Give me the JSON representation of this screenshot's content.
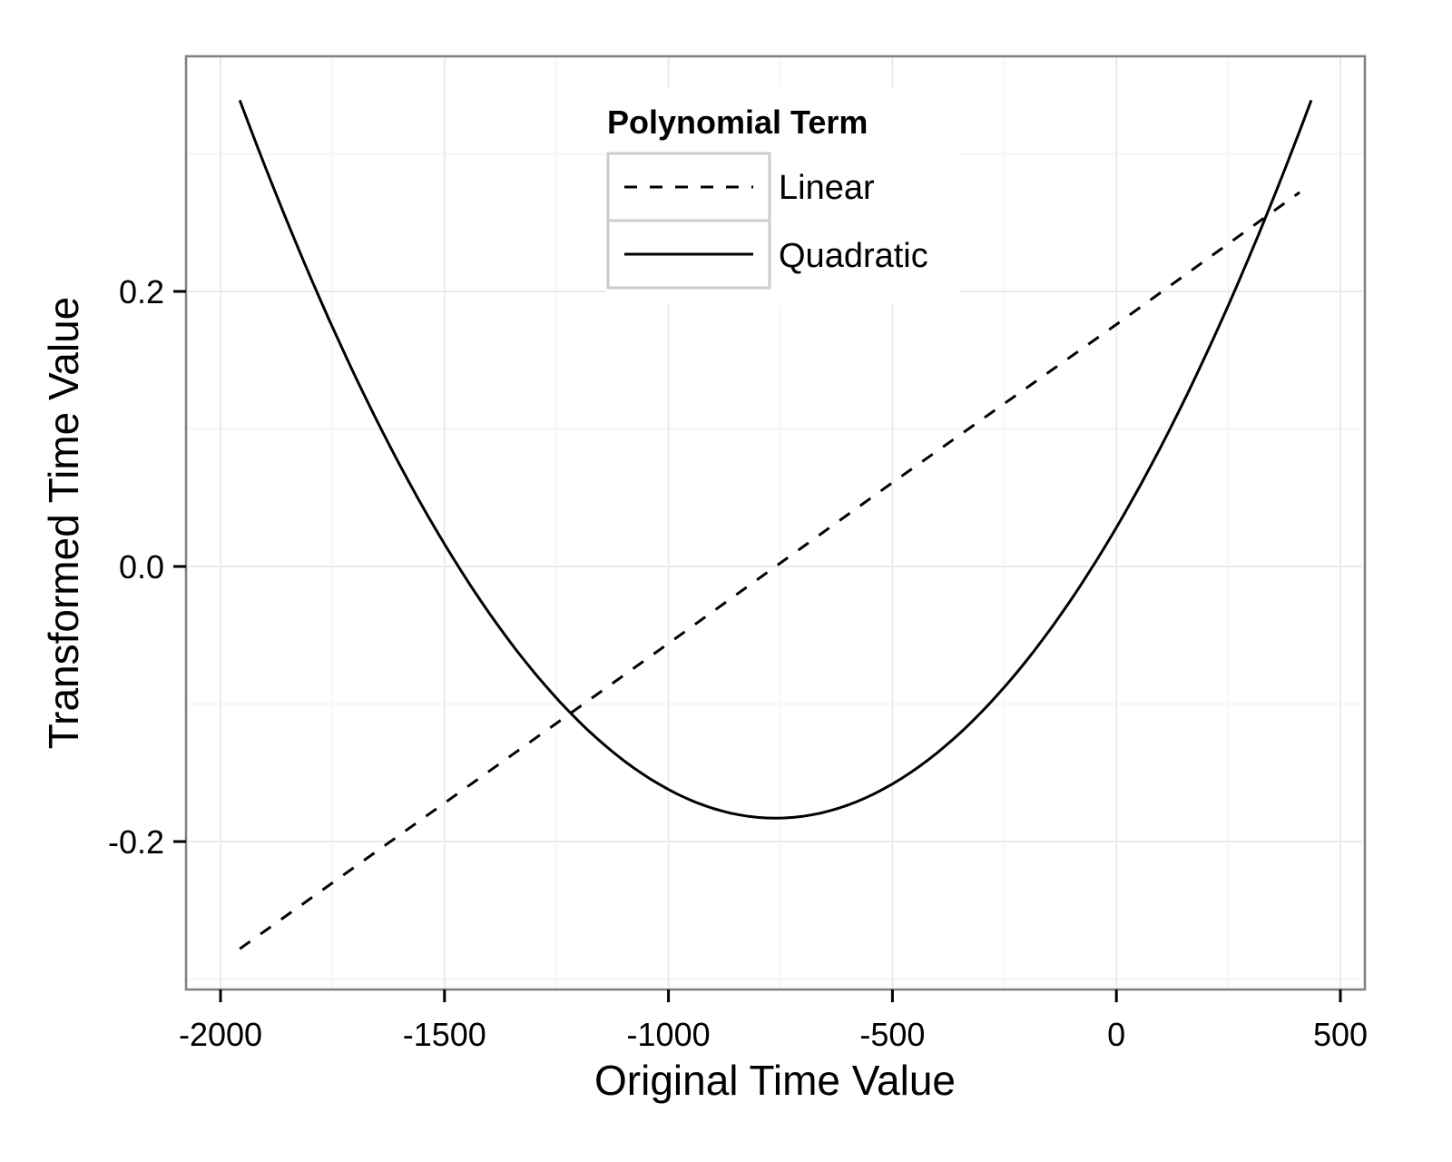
{
  "chart_data": {
    "type": "line",
    "title": "",
    "xlabel": "Original Time Value",
    "ylabel": "Transformed Time Value",
    "xlim": [
      -2077,
      557
    ],
    "ylim": [
      -0.307,
      0.371
    ],
    "x_ticks": [
      -2000,
      -1500,
      -1000,
      -500,
      0,
      500
    ],
    "x_tick_labels": [
      "-2000",
      "-1500",
      "-1000",
      "-500",
      "0",
      "500"
    ],
    "y_ticks": [
      -0.2,
      0.0,
      0.2
    ],
    "y_tick_labels": [
      "-0.2",
      "0.0",
      "0.2"
    ],
    "grid": true,
    "legend": {
      "title": "Polynomial Term",
      "position": "top-center-inside",
      "entries": [
        {
          "label": "Linear",
          "linestyle": "dashed"
        },
        {
          "label": "Quadratic",
          "linestyle": "solid"
        }
      ]
    },
    "series": [
      {
        "name": "Linear",
        "linestyle": "dashed",
        "x": [
          -1957,
          -1500,
          -1000,
          -761,
          -500,
          0,
          409
        ],
        "y": [
          -0.278,
          -0.172,
          -0.056,
          0.0,
          0.061,
          0.176,
          0.272
        ]
      },
      {
        "name": "Quadratic",
        "linestyle": "solid",
        "x": [
          -1957,
          -1800,
          -1600,
          -1500,
          -1400,
          -1200,
          -1000,
          -900,
          -761,
          -600,
          -500,
          -400,
          -200,
          0,
          200,
          300,
          435
        ],
        "y": [
          0.339,
          0.211,
          0.074,
          0.016,
          -0.034,
          -0.113,
          -0.162,
          -0.176,
          -0.183,
          -0.174,
          -0.159,
          -0.136,
          -0.068,
          0.028,
          0.154,
          0.229,
          0.339
        ]
      }
    ]
  },
  "colors": {
    "panel_border": "#7f7f7f",
    "grid_major": "#ebebeb",
    "grid_minor": "#f5f5f5",
    "line": "#000000",
    "legend_key_border": "#cccccc"
  }
}
